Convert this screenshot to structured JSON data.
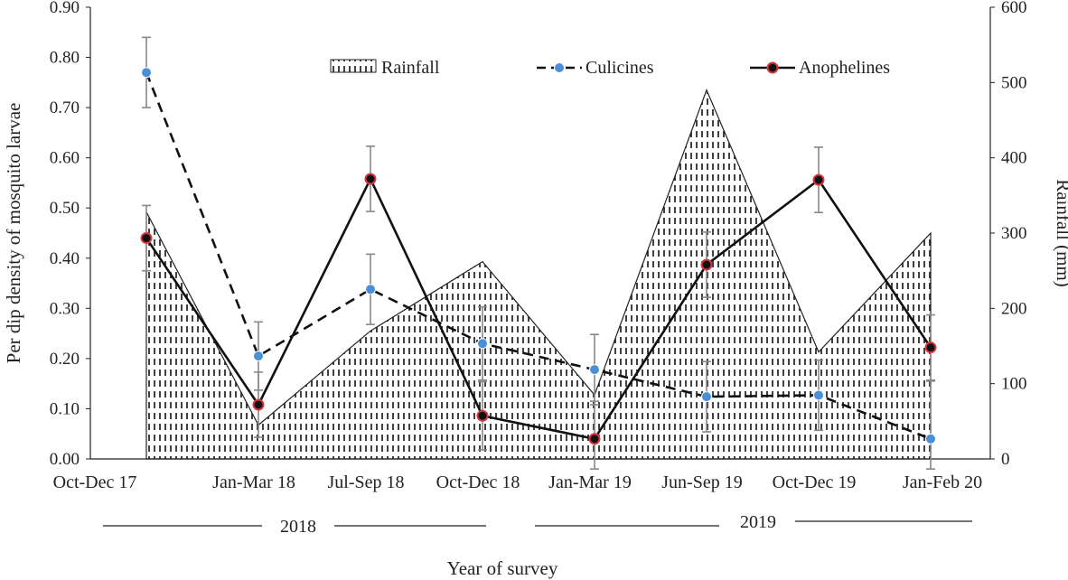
{
  "chart_data": {
    "type": "line+area",
    "categories": [
      "Oct-Dec 17",
      "Jan-Mar 18",
      "Jul-Sep 18",
      "Oct-Dec 18",
      "Jan-Mar 19",
      "Jun-Sep 19",
      "Oct-Dec 19",
      "Jan-Feb 20"
    ],
    "xlabel": "Year of survey",
    "ylabel": "Per dip density of mosquito larvae",
    "y2label": "Rainfall (mm)",
    "ylim": [
      0,
      0.9
    ],
    "y2lim": [
      0,
      600
    ],
    "yticks": [
      "0.00",
      "0.10",
      "0.20",
      "0.30",
      "0.40",
      "0.50",
      "0.60",
      "0.70",
      "0.80",
      "0.90"
    ],
    "y2ticks": [
      "0",
      "100",
      "200",
      "300",
      "400",
      "500",
      "600"
    ],
    "year_groups": [
      {
        "label": "2018",
        "from": "Jan-Mar 18",
        "to": "Oct-Dec 18"
      },
      {
        "label": "2019",
        "from": "Jan-Mar 19",
        "to": "Jan-Feb 20"
      }
    ],
    "legend_position": "top-center",
    "series": [
      {
        "name": "Rainfall",
        "axis": "right",
        "style": "hatched-area",
        "values": [
          328,
          45,
          170,
          262,
          85,
          490,
          142,
          300
        ]
      },
      {
        "name": "Culicines",
        "axis": "left",
        "style": "dashed",
        "color": "#4a90d9",
        "values": [
          0.77,
          0.205,
          0.338,
          0.23,
          0.178,
          0.124,
          0.127,
          0.04
        ],
        "err": [
          0.07,
          0.068,
          0.07,
          0.073,
          0.07,
          0.07,
          0.07,
          0.115
        ]
      },
      {
        "name": "Anophelines",
        "axis": "left",
        "style": "solid",
        "color": "#d9363e",
        "values": [
          0.44,
          0.108,
          0.558,
          0.086,
          0.04,
          0.387,
          0.556,
          0.222
        ],
        "err": [
          0.065,
          0.065,
          0.065,
          0.068,
          0.075,
          0.065,
          0.065,
          0.065
        ]
      }
    ]
  }
}
